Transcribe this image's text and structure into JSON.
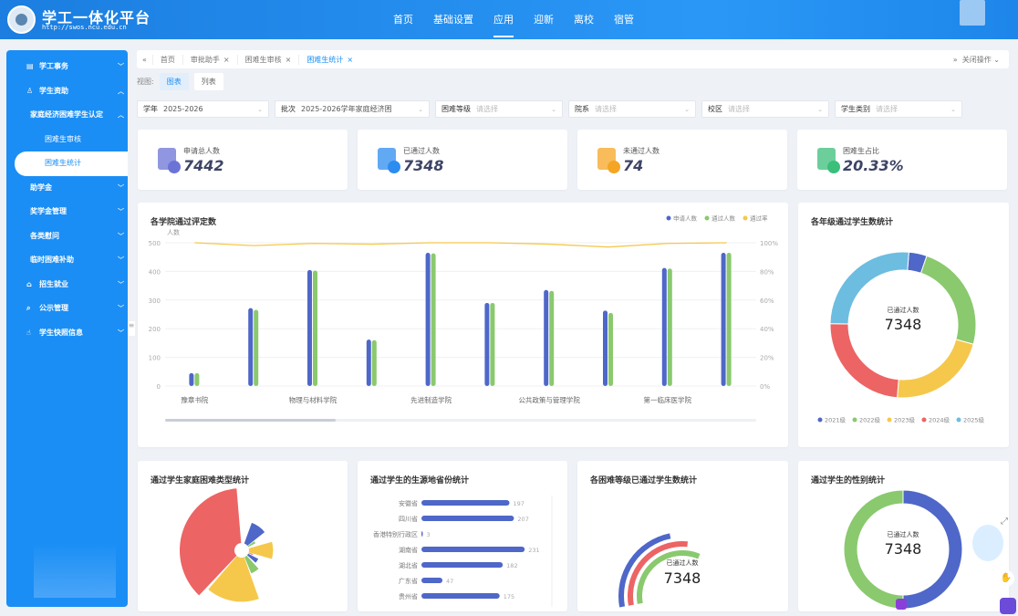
{
  "header": {
    "title": "学工一体化平台",
    "url": "http://swos.ncu.edu.cn",
    "nav": [
      "首页",
      "基础设置",
      "应用",
      "迎新",
      "离校",
      "宿管"
    ],
    "active_nav": 2
  },
  "sidebar": {
    "items": [
      {
        "label": "学工事务",
        "icon": "document-icon",
        "level": 0
      },
      {
        "label": "学生资助",
        "icon": "user-icon",
        "level": 0,
        "expanded": true
      },
      {
        "label": "家庭经济困难学生认定",
        "level": 1,
        "expanded": true
      },
      {
        "label": "困难生审核",
        "level": 2
      },
      {
        "label": "困难生统计",
        "level": 2,
        "active": true
      },
      {
        "label": "助学金",
        "level": 1
      },
      {
        "label": "奖学金管理",
        "level": 1
      },
      {
        "label": "各类慰问",
        "level": 1
      },
      {
        "label": "临时困难补助",
        "level": 1
      },
      {
        "label": "招生就业",
        "icon": "home-icon",
        "level": 0
      },
      {
        "label": "公示管理",
        "icon": "search-icon",
        "level": 0
      },
      {
        "label": "学生快照信息",
        "icon": "thumb-icon",
        "level": 0
      }
    ]
  },
  "tabs": {
    "items": [
      "首页",
      "审批助手",
      "困难生审核",
      "困难生统计"
    ],
    "active": 3,
    "close_ops": "关闭操作"
  },
  "view": {
    "label": "视图:",
    "options": [
      "图表",
      "列表"
    ],
    "active": 0
  },
  "filters": [
    {
      "label": "学年",
      "value": "2025-2026"
    },
    {
      "label": "批次",
      "value": "2025-2026学年家庭经济困"
    },
    {
      "label": "困难等级",
      "placeholder": "请选择"
    },
    {
      "label": "院系",
      "placeholder": "请选择"
    },
    {
      "label": "校区",
      "placeholder": "请选择"
    },
    {
      "label": "学生类别",
      "placeholder": "请选择"
    }
  ],
  "kpis": [
    {
      "label": "申请总人数",
      "value": "7442",
      "icon": "form-icon",
      "color": "#6b74d6"
    },
    {
      "label": "已通过人数",
      "value": "7348",
      "icon": "graduation-cap-icon",
      "color": "#2d8cf0"
    },
    {
      "label": "未通过人数",
      "value": "74",
      "icon": "stamp-clock-icon",
      "color": "#f5a524"
    },
    {
      "label": "困难生占比",
      "value": "20.33%",
      "icon": "stamp-check-icon",
      "color": "#3bbf7a"
    }
  ],
  "chart_data": [
    {
      "type": "bar",
      "title": "各学院通过评定数",
      "ylabel": "人数",
      "ylim": [
        0,
        500
      ],
      "y2lim": [
        0,
        100
      ],
      "yticks": [
        "0",
        "100",
        "200",
        "300",
        "400",
        "500"
      ],
      "y2ticks": [
        "0%",
        "20%",
        "40%",
        "60%",
        "80%",
        "100%"
      ],
      "categories": [
        "豫章书院",
        "",
        "物理与材料学院",
        "",
        "先进制造学院",
        "",
        "公共政策与管理学院",
        "",
        "第一临床医学院",
        ""
      ],
      "series": [
        {
          "name": "申请人数",
          "color": "#4e67c8",
          "values": [
            45,
            272,
            405,
            162,
            465,
            290,
            335,
            263,
            412,
            465
          ]
        },
        {
          "name": "通过人数",
          "color": "#8ac96e",
          "values": [
            45,
            266,
            403,
            160,
            463,
            290,
            332,
            255,
            410,
            465
          ]
        },
        {
          "name": "通过率",
          "color": "#f5c84c",
          "type": "line",
          "axis": "right",
          "values": [
            100,
            98,
            99.5,
            99,
            100,
            100,
            99,
            97,
            99.5,
            100
          ]
        }
      ],
      "legend": "top-right",
      "grid": true
    },
    {
      "type": "pie",
      "title": "各年级通过学生数统计",
      "center_label": "已通过人数",
      "center_value": "7348",
      "series": [
        {
          "name": "2021级",
          "color": "#4e67c8",
          "value": 4
        },
        {
          "name": "2022级",
          "color": "#8ac96e",
          "value": 24
        },
        {
          "name": "2023级",
          "color": "#f5c84c",
          "value": 22
        },
        {
          "name": "2024级",
          "color": "#ec6464",
          "value": 24
        },
        {
          "name": "2025级",
          "color": "#6cbde0",
          "value": 26
        }
      ],
      "legend": "bottom"
    },
    {
      "type": "pie",
      "title": "通过学生家庭困难类型统计",
      "rose": true,
      "series": [
        {
          "color": "#ec6464",
          "value": 100
        },
        {
          "color": "#4e67c8",
          "value": 38
        },
        {
          "color": "#8ac96e",
          "value": 12
        },
        {
          "color": "#f5c84c",
          "value": 42
        },
        {
          "color": "#ec6464",
          "value": 5
        },
        {
          "color": "#4e67c8",
          "value": 18
        },
        {
          "color": "#8ac96e",
          "value": 30
        },
        {
          "color": "#f5c84c",
          "value": 80
        }
      ]
    },
    {
      "type": "bar",
      "orientation": "horizontal",
      "title": "通过学生的生源地省份统计",
      "categories": [
        "安徽省",
        "四川省",
        "香港特别行政区",
        "湖南省",
        "湖北省",
        "广东省",
        "贵州省"
      ],
      "values": [
        197,
        207,
        3,
        231,
        182,
        47,
        175
      ],
      "color": "#4e67c8"
    },
    {
      "type": "pie",
      "title": "各困难等级已通过学生数统计",
      "center_label": "已通过人数",
      "center_value": "7348",
      "series": [
        {
          "color": "#4e67c8",
          "value": 60
        },
        {
          "color": "#ec6464",
          "value": 55
        },
        {
          "color": "#8ac96e",
          "value": 50
        }
      ]
    },
    {
      "type": "pie",
      "title": "通过学生的性别统计",
      "center_label": "已通过人数",
      "center_value": "7348",
      "series": [
        {
          "color": "#4e67c8",
          "value": 50
        },
        {
          "color": "#8ac96e",
          "value": 50
        }
      ]
    }
  ]
}
